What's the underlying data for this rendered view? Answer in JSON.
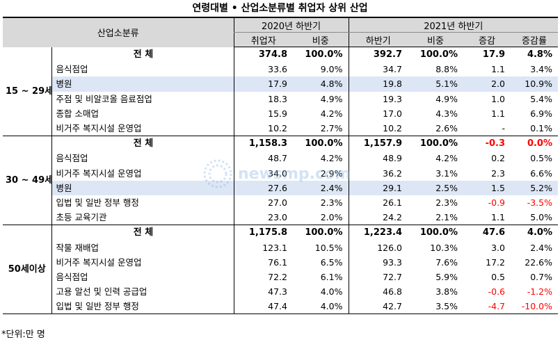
{
  "title": "연령대별 • 산업소분류별 취업자 상위 산업",
  "headers": {
    "industry": "산업소분류",
    "period_2020": "2020년 하반기",
    "period_2021": "2021년 하반기",
    "cols": [
      "취업자",
      "비중",
      "하반기",
      "비중",
      "증감",
      "증감률"
    ]
  },
  "groups": [
    {
      "age": "15 ~ 29세",
      "rows": [
        {
          "name": "전 체",
          "v": [
            "374.8",
            "100.0%",
            "392.7",
            "100.0%",
            "17.9",
            "4.8%"
          ],
          "total": true,
          "neg": [
            false,
            false
          ]
        },
        {
          "name": "음식점업",
          "v": [
            "33.6",
            "9.0%",
            "34.7",
            "8.8%",
            "1.1",
            "3.4%"
          ],
          "neg": [
            false,
            false
          ]
        },
        {
          "name": "병원",
          "v": [
            "17.9",
            "4.8%",
            "19.8",
            "5.1%",
            "2.0",
            "10.9%"
          ],
          "hl": true,
          "neg": [
            false,
            false
          ]
        },
        {
          "name": "주점 및 비알코올 음료점업",
          "v": [
            "18.3",
            "4.9%",
            "19.3",
            "4.9%",
            "1.0",
            "5.4%"
          ],
          "neg": [
            false,
            false
          ]
        },
        {
          "name": "종합 소매업",
          "v": [
            "15.9",
            "4.2%",
            "17.0",
            "4.3%",
            "1.1",
            "6.9%"
          ],
          "neg": [
            false,
            false
          ]
        },
        {
          "name": "비거주 복지시설 운영업",
          "v": [
            "10.2",
            "2.7%",
            "10.2",
            "2.6%",
            "-",
            "0.1%"
          ],
          "neg": [
            false,
            false
          ]
        }
      ]
    },
    {
      "age": "30 ~ 49세",
      "rows": [
        {
          "name": "전 체",
          "v": [
            "1,158.3",
            "100.0%",
            "1,157.9",
            "100.0%",
            "-0.3",
            "0.0%"
          ],
          "total": true,
          "neg": [
            true,
            true
          ]
        },
        {
          "name": "음식점업",
          "v": [
            "48.7",
            "4.2%",
            "48.9",
            "4.2%",
            "0.2",
            "0.5%"
          ],
          "neg": [
            false,
            false
          ]
        },
        {
          "name": "비거주 복지시설 운영업",
          "v": [
            "34.0",
            "2.9%",
            "36.2",
            "3.1%",
            "2.3",
            "6.6%"
          ],
          "neg": [
            false,
            false
          ]
        },
        {
          "name": "병원",
          "v": [
            "27.6",
            "2.4%",
            "29.1",
            "2.5%",
            "1.5",
            "5.2%"
          ],
          "hl": true,
          "neg": [
            false,
            false
          ]
        },
        {
          "name": "입법 및 일반 정부 행정",
          "v": [
            "27.0",
            "2.3%",
            "26.1",
            "2.3%",
            "-0.9",
            "-3.5%"
          ],
          "neg": [
            true,
            true
          ]
        },
        {
          "name": "초등 교육기관",
          "v": [
            "23.0",
            "2.0%",
            "24.2",
            "2.1%",
            "1.1",
            "5.0%"
          ],
          "neg": [
            false,
            false
          ]
        }
      ]
    },
    {
      "age": "50세이상",
      "rows": [
        {
          "name": "전 체",
          "v": [
            "1,175.8",
            "100.0%",
            "1,223.4",
            "100.0%",
            "47.6",
            "4.0%"
          ],
          "total": true,
          "neg": [
            false,
            false
          ]
        },
        {
          "name": "작물 재배업",
          "v": [
            "123.1",
            "10.5%",
            "126.0",
            "10.3%",
            "3.0",
            "2.4%"
          ],
          "neg": [
            false,
            false
          ]
        },
        {
          "name": "비거주 복지시설 운영업",
          "v": [
            "76.1",
            "6.5%",
            "93.3",
            "7.6%",
            "17.2",
            "22.6%"
          ],
          "neg": [
            false,
            false
          ]
        },
        {
          "name": "음식점업",
          "v": [
            "72.2",
            "6.1%",
            "72.7",
            "5.9%",
            "0.5",
            "0.7%"
          ],
          "neg": [
            false,
            false
          ]
        },
        {
          "name": "고용 알선 및 인력 공급업",
          "v": [
            "47.3",
            "4.0%",
            "46.8",
            "3.8%",
            "-0.6",
            "-1.2%"
          ],
          "neg": [
            true,
            true
          ]
        },
        {
          "name": "입법 및 일반 정부 행정",
          "v": [
            "47.4",
            "4.0%",
            "42.7",
            "3.5%",
            "-4.7",
            "-10.0%"
          ],
          "neg": [
            true,
            true
          ]
        }
      ]
    }
  ],
  "footnote": "*단위:만 명",
  "watermark": "newsmp.com",
  "colors": {
    "header_bg": "#d9d9d9",
    "highlight_bg": "#dde6f5",
    "negative": "#ff0000",
    "watermark": "#7fb0e0"
  },
  "icons": {
    "watermark_logo": "ring-logo-icon"
  }
}
